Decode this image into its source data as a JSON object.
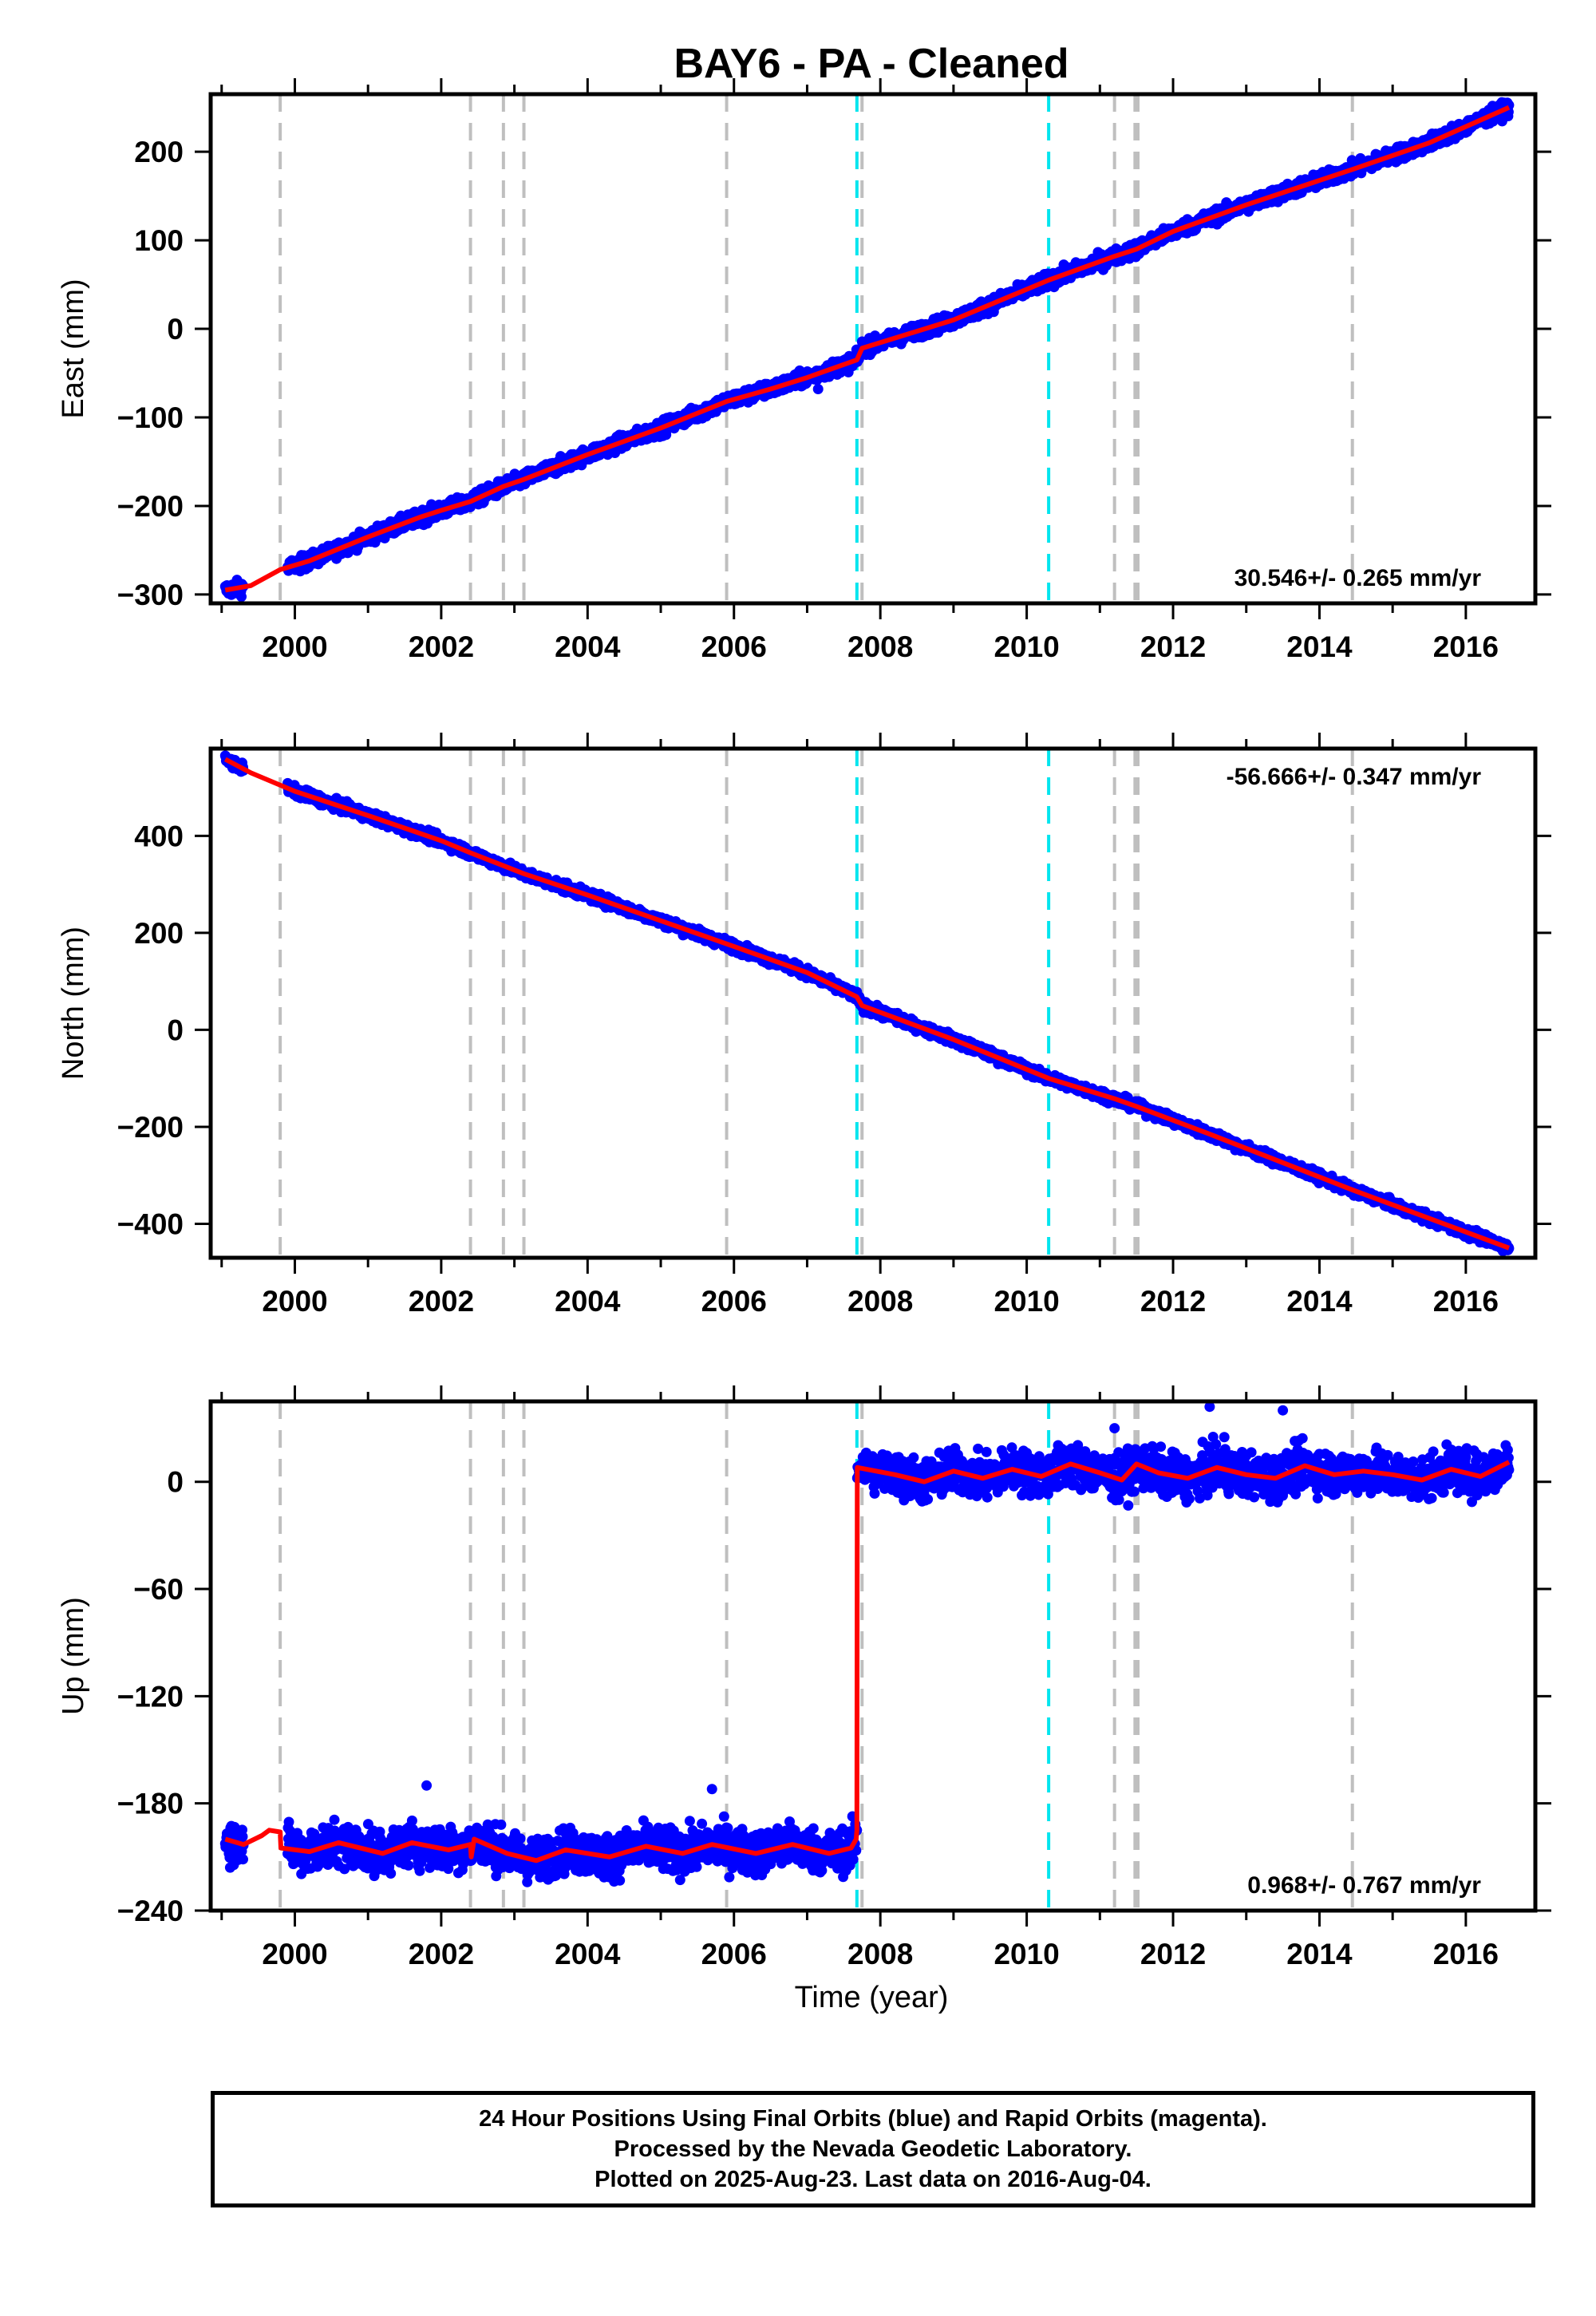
{
  "chart_data": {
    "title": "BAY6  - PA - Cleaned",
    "type": "scatter",
    "xlabel": "Time (year)",
    "xlim": [
      1998.85,
      2016.95
    ],
    "x_ticks": [
      2000,
      2002,
      2004,
      2006,
      2008,
      2010,
      2012,
      2014,
      2016
    ],
    "x_tick_labels": [
      "2000",
      "2002",
      "2004",
      "2006",
      "2008",
      "2010",
      "2012",
      "2014",
      "2016"
    ],
    "data_start": 1999.05,
    "data_end": 2016.59,
    "gray_event_lines": [
      1999.8,
      2002.4,
      2002.85,
      2003.13,
      2005.9,
      2007.75,
      2011.2,
      2011.48,
      2011.52,
      2014.45
    ],
    "cyan_event_lines": [
      2007.68,
      2010.3
    ],
    "series_colors": {
      "observations": "#0000ff",
      "model": "#ff0000",
      "gray_lines": "#bfbfbf",
      "cyan_lines": "#00e5ee"
    },
    "panels": [
      {
        "id": "east",
        "ylabel": "East (mm)",
        "ylim": [
          -310,
          265
        ],
        "y_ticks": [
          -300,
          -200,
          -100,
          0,
          100,
          200
        ],
        "y_tick_labels": [
          "−300",
          "−200",
          "−100",
          "0",
          "100",
          "200"
        ],
        "rate_label": "30.546+/- 0.265 mm/yr",
        "rate_position": "bottom-right",
        "rate_mm_per_yr": 30.546,
        "data_gap": [
          1999.3,
          1999.9
        ],
        "model": [
          [
            1999.05,
            -295
          ],
          [
            1999.4,
            -290
          ],
          [
            1999.8,
            -272
          ],
          [
            2000.2,
            -262
          ],
          [
            2001.0,
            -235
          ],
          [
            2001.7,
            -213
          ],
          [
            2002.0,
            -205
          ],
          [
            2002.4,
            -195
          ],
          [
            2002.85,
            -178
          ],
          [
            2003.13,
            -170
          ],
          [
            2004.0,
            -142
          ],
          [
            2005.0,
            -112
          ],
          [
            2005.9,
            -82
          ],
          [
            2006.5,
            -68
          ],
          [
            2007.0,
            -55
          ],
          [
            2007.68,
            -35
          ],
          [
            2007.75,
            -22
          ],
          [
            2009.0,
            10
          ],
          [
            2010.3,
            55
          ],
          [
            2011.2,
            82
          ],
          [
            2011.5,
            90
          ],
          [
            2012.0,
            110
          ],
          [
            2013.0,
            140
          ],
          [
            2014.45,
            180
          ],
          [
            2015.5,
            210
          ],
          [
            2016.59,
            250
          ]
        ],
        "scatter_sd": 4,
        "outliers": [
          [
            2007.15,
            -68
          ],
          [
            2007.62,
            -42
          ],
          [
            2002.4,
            -192
          ],
          [
            2005.35,
            -97
          ]
        ]
      },
      {
        "id": "north",
        "ylabel": "North (mm)",
        "ylim": [
          -470,
          580
        ],
        "y_ticks": [
          -400,
          -200,
          0,
          200,
          400
        ],
        "y_tick_labels": [
          "−400",
          "−200",
          "0",
          "200",
          "400"
        ],
        "rate_label": "-56.666+/- 0.347 mm/yr",
        "rate_position": "top-right",
        "rate_mm_per_yr": -56.666,
        "data_gap": [
          1999.3,
          1999.9
        ],
        "model": [
          [
            1999.05,
            558
          ],
          [
            1999.4,
            530
          ],
          [
            2000.0,
            492
          ],
          [
            2001.0,
            442
          ],
          [
            2002.0,
            390
          ],
          [
            2002.4,
            365
          ],
          [
            2003.13,
            322
          ],
          [
            2004.0,
            278
          ],
          [
            2005.0,
            225
          ],
          [
            2006.0,
            172
          ],
          [
            2007.0,
            118
          ],
          [
            2007.68,
            68
          ],
          [
            2007.75,
            50
          ],
          [
            2009.0,
            -20
          ],
          [
            2010.3,
            -100
          ],
          [
            2011.2,
            -142
          ],
          [
            2011.5,
            -158
          ],
          [
            2012.5,
            -215
          ],
          [
            2014.45,
            -330
          ],
          [
            2016.59,
            -450
          ]
        ],
        "scatter_sd": 5,
        "outliers": [
          [
            1999.15,
            540
          ]
        ]
      },
      {
        "id": "up",
        "ylabel": "Up (mm)",
        "ylim": [
          -240,
          45
        ],
        "y_ticks": [
          -240,
          -180,
          -120,
          -60,
          0
        ],
        "y_tick_labels": [
          "−240",
          "−180",
          "−120",
          "−60",
          "0"
        ],
        "rate_label": "0.968+/- 0.767 mm/yr",
        "rate_position": "bottom-right",
        "rate_mm_per_yr": 0.968,
        "data_gap": [
          1999.3,
          1999.9
        ],
        "model": [
          [
            1999.05,
            -200
          ],
          [
            1999.3,
            -203
          ],
          [
            1999.55,
            -198
          ],
          [
            1999.65,
            -195
          ],
          [
            1999.8,
            -196
          ],
          [
            1999.81,
            -205
          ],
          [
            2000.2,
            -207
          ],
          [
            2000.6,
            -202
          ],
          [
            2001.2,
            -208
          ],
          [
            2001.6,
            -202
          ],
          [
            2002.1,
            -206
          ],
          [
            2002.4,
            -203
          ],
          [
            2002.41,
            -210
          ],
          [
            2002.45,
            -200
          ],
          [
            2002.9,
            -208
          ],
          [
            2003.3,
            -212
          ],
          [
            2003.7,
            -206
          ],
          [
            2004.3,
            -210
          ],
          [
            2004.8,
            -204
          ],
          [
            2005.3,
            -208
          ],
          [
            2005.7,
            -203
          ],
          [
            2006.3,
            -208
          ],
          [
            2006.8,
            -203
          ],
          [
            2007.3,
            -208
          ],
          [
            2007.6,
            -205
          ],
          [
            2007.67,
            -200
          ],
          [
            2007.68,
            -195
          ],
          [
            2007.685,
            8
          ],
          [
            2008.2,
            4
          ],
          [
            2008.6,
            0
          ],
          [
            2009.0,
            6
          ],
          [
            2009.4,
            2
          ],
          [
            2009.8,
            7
          ],
          [
            2010.2,
            3
          ],
          [
            2010.6,
            10
          ],
          [
            2011.0,
            5
          ],
          [
            2011.3,
            1
          ],
          [
            2011.5,
            10
          ],
          [
            2011.8,
            5
          ],
          [
            2012.2,
            2
          ],
          [
            2012.6,
            8
          ],
          [
            2013.0,
            4
          ],
          [
            2013.4,
            2
          ],
          [
            2013.8,
            9
          ],
          [
            2014.2,
            4
          ],
          [
            2014.6,
            6
          ],
          [
            2015.0,
            4
          ],
          [
            2015.4,
            1
          ],
          [
            2015.8,
            7
          ],
          [
            2016.2,
            3
          ],
          [
            2016.59,
            11
          ]
        ],
        "scatter_sd": 6,
        "outliers": [
          [
            2001.8,
            -170
          ],
          [
            2005.7,
            -172
          ],
          [
            2012.5,
            42
          ],
          [
            2013.5,
            40
          ],
          [
            2011.2,
            30
          ],
          [
            2012.7,
            25
          ]
        ]
      }
    ],
    "footer_lines": [
      "24 Hour Positions Using Final Orbits (blue) and Rapid Orbits (magenta).",
      "Processed by the Nevada Geodetic Laboratory.",
      "Plotted on 2025-Aug-23. Last data on 2016-Aug-04."
    ]
  }
}
